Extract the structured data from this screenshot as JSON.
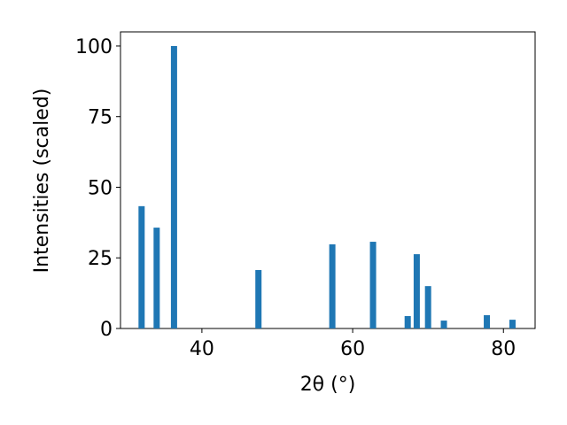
{
  "chart_data": {
    "type": "bar",
    "xlabel": "2θ (°)",
    "ylabel": "Intensities (scaled)",
    "x": [
      32.0,
      34.0,
      36.3,
      47.5,
      57.3,
      62.7,
      67.3,
      68.5,
      70.0,
      72.1,
      77.8,
      81.2
    ],
    "values": [
      43.3,
      35.7,
      100,
      20.7,
      29.8,
      30.7,
      4.4,
      26.3,
      15.0,
      2.8,
      4.7,
      3.1
    ],
    "color": "#1f77b4",
    "xlim": [
      29.2,
      84.2
    ],
    "ylim": [
      0,
      105
    ],
    "xticks": [
      40,
      60,
      80
    ],
    "yticks": [
      0,
      25,
      50,
      75,
      100
    ],
    "grid": false
  }
}
